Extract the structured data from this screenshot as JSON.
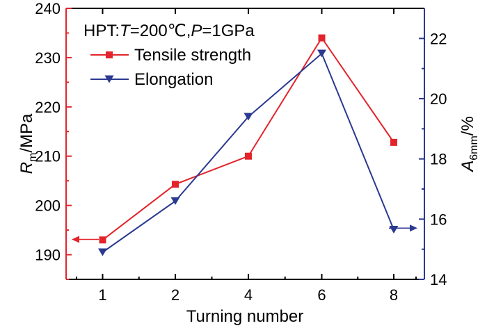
{
  "chart_data": {
    "type": "line",
    "categories": [
      "1",
      "2",
      "4",
      "6",
      "8"
    ],
    "xlabel": "Turning number",
    "annotation": {
      "prefix": "HPT:",
      "t_var": "T",
      "t_val": "=200℃,",
      "p_var": "P",
      "p_val": "=1GPa"
    },
    "left_axis": {
      "label_var": "R",
      "label_sub": "m",
      "label_unit": "/MPa",
      "ylim": [
        185,
        240
      ],
      "ticks": [
        190,
        200,
        210,
        220,
        230,
        240
      ],
      "color": "#e3242b"
    },
    "right_axis": {
      "label_var": "A",
      "label_sub": "6mm",
      "label_unit": "/%",
      "ylim": [
        14,
        23
      ],
      "ticks": [
        14,
        16,
        18,
        20,
        22
      ],
      "color": "#2b3990"
    },
    "series": [
      {
        "name": "Tensile strength",
        "axis": "left",
        "marker": "square",
        "color": "#e3242b",
        "values": [
          193,
          204.3,
          210,
          234,
          212.8
        ]
      },
      {
        "name": "Elongation",
        "axis": "right",
        "marker": "triangle-down",
        "color": "#2b3990",
        "values": [
          14.9,
          16.6,
          19.4,
          21.5,
          15.65
        ]
      }
    ]
  }
}
